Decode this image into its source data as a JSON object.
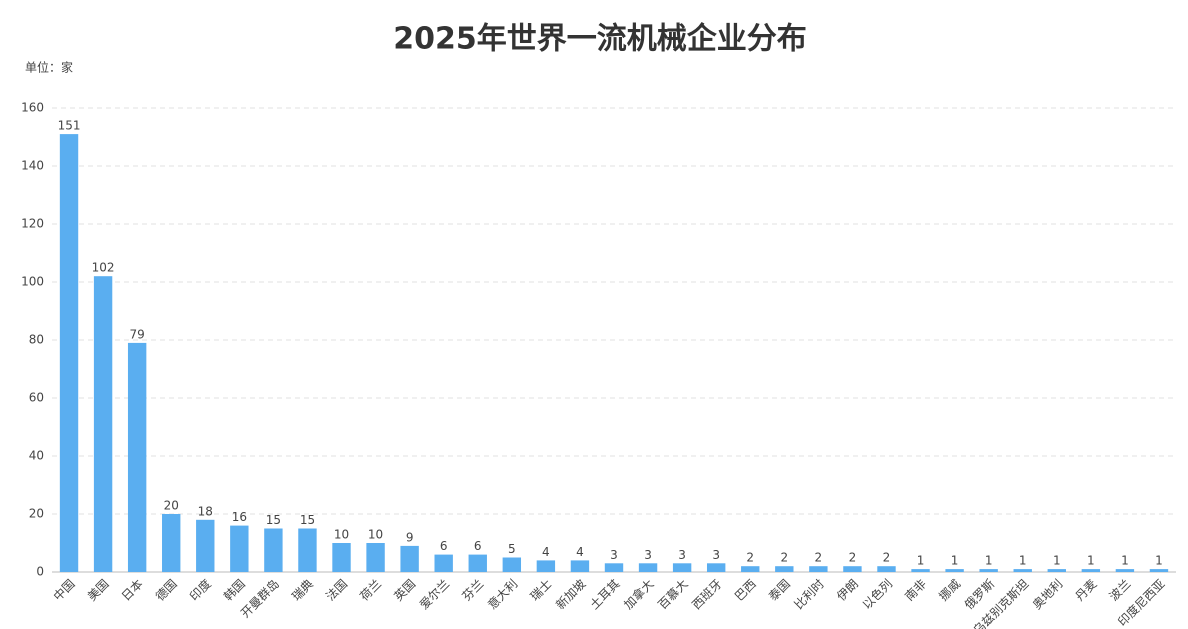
{
  "chart_data": {
    "type": "bar",
    "title": "2025年世界一流机械企业分布",
    "unit_label": "单位：家",
    "categories": [
      "中国",
      "美国",
      "日本",
      "德国",
      "印度",
      "韩国",
      "开曼群岛",
      "瑞典",
      "法国",
      "荷兰",
      "英国",
      "爱尔兰",
      "芬兰",
      "意大利",
      "瑞士",
      "新加坡",
      "土耳其",
      "加拿大",
      "百慕大",
      "西班牙",
      "巴西",
      "泰国",
      "比利时",
      "伊朗",
      "以色列",
      "南非",
      "挪威",
      "俄罗斯",
      "乌兹别克斯坦",
      "奥地利",
      "丹麦",
      "波兰",
      "印度尼西亚"
    ],
    "values": [
      151,
      102,
      79,
      20,
      18,
      16,
      15,
      15,
      10,
      10,
      9,
      6,
      6,
      5,
      4,
      4,
      3,
      3,
      3,
      3,
      2,
      2,
      2,
      2,
      2,
      1,
      1,
      1,
      1,
      1,
      1,
      1,
      1
    ],
    "color": "#5aaef0",
    "ylim": [
      0,
      160
    ],
    "yticks": [
      0,
      20,
      40,
      60,
      80,
      100,
      120,
      140,
      160
    ],
    "grid": true
  }
}
